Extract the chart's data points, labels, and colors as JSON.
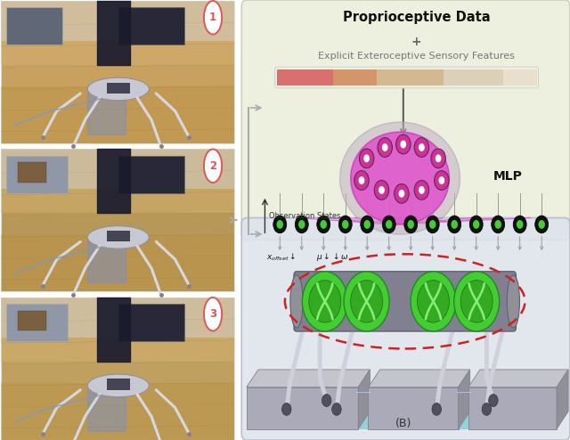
{
  "bg_color": "#ffffff",
  "text_proprioceptive": "Proprioceptive Data",
  "text_plus": "+",
  "text_exteroceptive": "Explicit Exteroceptive Sensory Features",
  "text_mlp": "MLP",
  "text_obs": "Observation States",
  "text_label_B": "(B)",
  "label_color": "#e05555",
  "mlp_pink": "#e060c0",
  "mlp_gray": "#b8a8b8",
  "green_osc": "#44cc33",
  "red_dashed": "#cc2222",
  "arrow_gray": "#888888",
  "bar_colors": [
    "#d97070",
    "#d4956a",
    "#d4b890",
    "#ddd0b8",
    "#e8e0cc"
  ],
  "purple_conn": "#cc44cc",
  "light_green_bg": "#eaedda",
  "lower_bg": "#dde3ec",
  "cyan_water": "#7accd4",
  "platform_top": "#c4c4cc",
  "platform_front": "#aaaab8",
  "platform_side": "#909098",
  "photo1_bg": "#c8a060",
  "photo2_bg": "#b89858",
  "photo3_bg": "#c0a060",
  "photo_border": "#dddddd",
  "inset_bg": "#9098a8",
  "inset_box": "#7a6040",
  "person_dark": "#1a1a2e",
  "robot_body": "#c8c8d2",
  "robot_leg": "#d8d8e0",
  "leash_blue": "#7799cc",
  "floor_stripe": "#8090b8"
}
